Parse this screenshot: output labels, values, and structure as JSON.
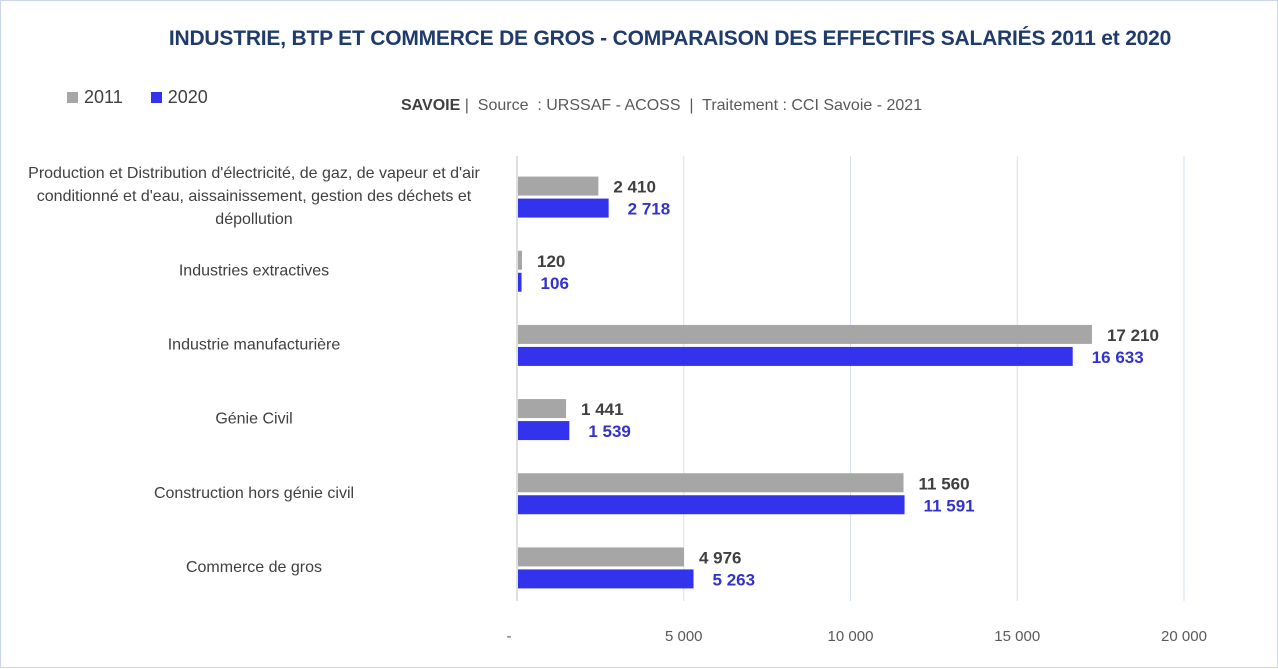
{
  "chart_data": {
    "type": "bar",
    "orientation": "horizontal",
    "title": "INDUSTRIE, BTP ET COMMERCE DE GROS - COMPARAISON DES EFFECTIFS SALARIÉS 2011 et 2020",
    "subtitle": {
      "region": "SAVOIE",
      "rest": " |  Source  : URSSAF - ACOSS  |  Traitement : CCI Savoie - 2021"
    },
    "categories": [
      [
        "Production et Distribution d'électricité, de gaz, de vapeur et d'air",
        "conditionné et d'eau, aissainissement, gestion des déchets et",
        "dépollution"
      ],
      [
        "Industries extractives"
      ],
      [
        "Industrie manufacturière"
      ],
      [
        "Génie Civil"
      ],
      [
        "Construction hors génie civil"
      ],
      [
        "Commerce de gros"
      ]
    ],
    "series": [
      {
        "name": "2011",
        "color": "#a6a6a6",
        "values": [
          2410,
          120,
          17210,
          1441,
          11560,
          4976
        ],
        "labels": [
          "2 410",
          "120",
          "17 210",
          "1 441",
          "11 560",
          "4 976"
        ]
      },
      {
        "name": "2020",
        "color": "#3333ee",
        "values": [
          2718,
          106,
          16633,
          1539,
          11591,
          5263
        ],
        "labels": [
          "2 718",
          "106",
          "16 633",
          "1 539",
          "11 591",
          "5 263"
        ]
      }
    ],
    "xlim": [
      0,
      20000
    ],
    "xticks": [
      0,
      5000,
      10000,
      15000,
      20000
    ],
    "xtick_labels": [
      "-",
      "5 000",
      "10 000",
      "15 000",
      "20 000"
    ],
    "grid": "vertical",
    "legend_position": "top-left"
  }
}
